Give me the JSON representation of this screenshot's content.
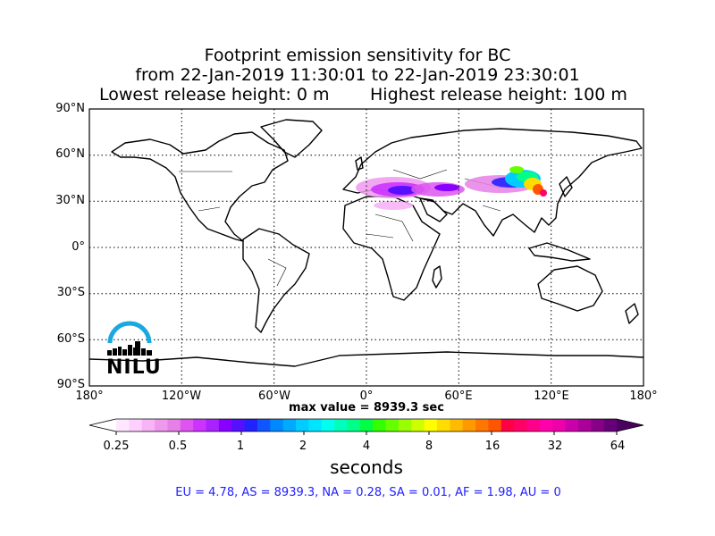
{
  "title": {
    "line1": "Footprint emission sensitivity for BC",
    "line2": "from 22-Jan-2019 11:30:01 to 22-Jan-2019 23:30:01",
    "release_low": "Lowest release height: 0 m",
    "release_high": "Highest release height: 100 m"
  },
  "map": {
    "lat_labels": [
      "90°N",
      "60°N",
      "30°N",
      "0°",
      "30°S",
      "60°S",
      "90°S"
    ],
    "lon_labels": [
      "180°",
      "120°W",
      "60°W",
      "0°",
      "60°E",
      "120°E",
      "180°"
    ],
    "grid": true,
    "grid_style": "dotted"
  },
  "max_value": "max value = 8939.3 sec",
  "colorbar": {
    "tick_labels": [
      "0.25",
      "0.5",
      "1",
      "2",
      "4",
      "8",
      "16",
      "32",
      "64"
    ],
    "units": "seconds",
    "extend": "both",
    "colors": [
      "#ffe8ff",
      "#ffd0ff",
      "#f7b4f7",
      "#ee99ee",
      "#e680e6",
      "#dd55ee",
      "#cc33ff",
      "#aa22ff",
      "#8800ff",
      "#5511ff",
      "#2222ff",
      "#1155ff",
      "#0088ff",
      "#00aaff",
      "#00ccff",
      "#00e5ff",
      "#00ffee",
      "#00ffbb",
      "#00ff88",
      "#00ff44",
      "#33ff00",
      "#66ff00",
      "#99ff00",
      "#ccff00",
      "#ffff00",
      "#ffdd00",
      "#ffbb00",
      "#ff9900",
      "#ff7700",
      "#ff5500",
      "#ff0044",
      "#ff0066",
      "#ff0088",
      "#ff00aa",
      "#ee00aa",
      "#cc00aa",
      "#aa0099",
      "#880088",
      "#660077"
    ]
  },
  "regional_values": "EU = 4.78,  AS = 8939.3,  NA = 0.28,  SA = 0.01,  AF = 1.98,  AU = 0",
  "logo": {
    "text": "NILU",
    "color": "#1aa8e0"
  }
}
